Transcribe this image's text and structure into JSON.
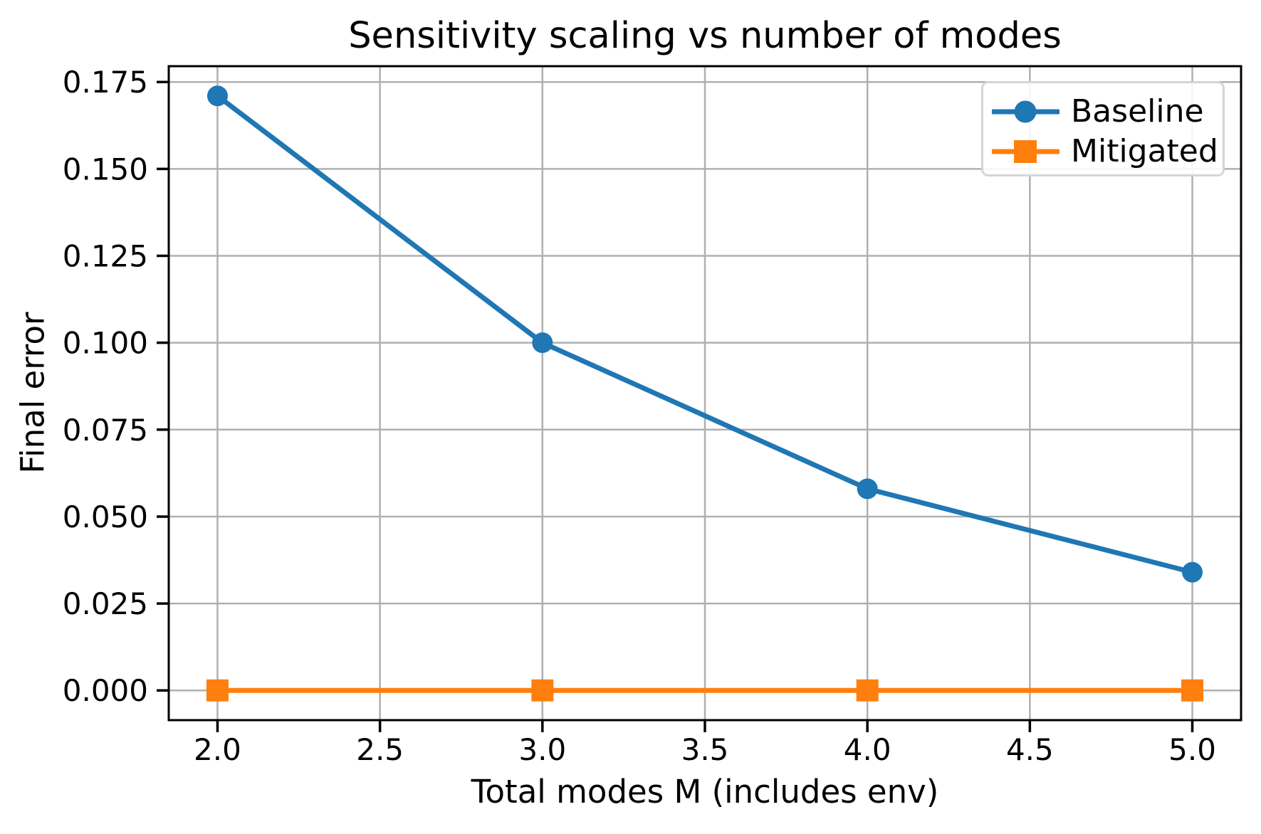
{
  "figure": {
    "background": "#ffffff",
    "text_color": "#000000"
  },
  "chart_data": {
    "type": "line",
    "title": "Sensitivity scaling vs number of modes",
    "xlabel": "Total modes M (includes env)",
    "ylabel": "Final error",
    "x": [
      2,
      3,
      4,
      5
    ],
    "series": [
      {
        "name": "Baseline",
        "color": "#1f77b4",
        "marker": "circle",
        "values": [
          0.171,
          0.1,
          0.058,
          0.034
        ]
      },
      {
        "name": "Mitigated",
        "color": "#ff7f0e",
        "marker": "square",
        "values": [
          0.0,
          0.0,
          0.0,
          0.0
        ]
      }
    ],
    "xlim": [
      1.85,
      5.15
    ],
    "ylim": [
      -0.00855,
      0.17955
    ],
    "xticks": [
      2.0,
      2.5,
      3.0,
      3.5,
      4.0,
      4.5,
      5.0
    ],
    "xtick_labels": [
      "2.0",
      "2.5",
      "3.0",
      "3.5",
      "4.0",
      "4.5",
      "5.0"
    ],
    "yticks": [
      0.0,
      0.025,
      0.05,
      0.075,
      0.1,
      0.125,
      0.15,
      0.175
    ],
    "ytick_labels": [
      "0.000",
      "0.025",
      "0.050",
      "0.075",
      "0.100",
      "0.125",
      "0.150",
      "0.175"
    ],
    "grid": true,
    "grid_color": "#b0b0b0",
    "spine_color": "#000000",
    "legend": {
      "position": "upper right",
      "entries": [
        "Baseline",
        "Mitigated"
      ]
    }
  }
}
